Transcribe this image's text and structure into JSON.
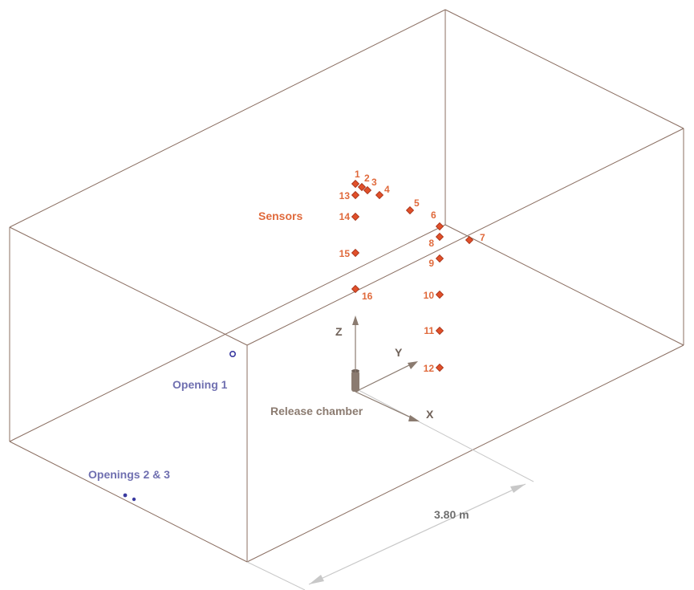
{
  "labels": {
    "sensors": "Sensors",
    "opening1": "Opening 1",
    "openings23": "Openings 2 & 3",
    "release_chamber": "Release chamber",
    "dimension": "3.80 m",
    "axis_x": "X",
    "axis_y": "Y",
    "axis_z": "Z"
  },
  "sensors": [
    {
      "id": "1",
      "label": "1"
    },
    {
      "id": "2",
      "label": "2"
    },
    {
      "id": "3",
      "label": "3"
    },
    {
      "id": "4",
      "label": "4"
    },
    {
      "id": "5",
      "label": "5"
    },
    {
      "id": "6",
      "label": "6"
    },
    {
      "id": "7",
      "label": "7"
    },
    {
      "id": "8",
      "label": "8"
    },
    {
      "id": "9",
      "label": "9"
    },
    {
      "id": "10",
      "label": "10"
    },
    {
      "id": "11",
      "label": "11"
    },
    {
      "id": "12",
      "label": "12"
    },
    {
      "id": "13",
      "label": "13"
    },
    {
      "id": "14",
      "label": "14"
    },
    {
      "id": "15",
      "label": "15"
    },
    {
      "id": "16",
      "label": "16"
    }
  ],
  "colors": {
    "box_edge": "#8b6f62",
    "sensor_fill": "#e0502a",
    "sensor_label": "#e06a3c",
    "opening_label": "#6f6fb0",
    "axis": "#8b7b70",
    "dimension": "#c8c8c8",
    "chamber": "#8b7b70"
  }
}
